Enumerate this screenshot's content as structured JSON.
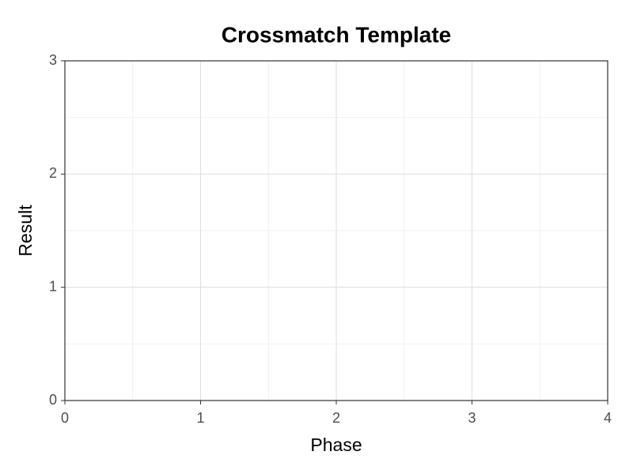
{
  "chart_data": {
    "type": "scatter",
    "title": "Crossmatch Template",
    "xlabel": "Phase",
    "ylabel": "Result",
    "xlim": [
      0,
      4
    ],
    "ylim": [
      0,
      3
    ],
    "xticks": [
      0,
      1,
      2,
      3,
      4
    ],
    "yticks": [
      0,
      1,
      2,
      3
    ],
    "grid": true,
    "minor_grid": true,
    "series": []
  }
}
